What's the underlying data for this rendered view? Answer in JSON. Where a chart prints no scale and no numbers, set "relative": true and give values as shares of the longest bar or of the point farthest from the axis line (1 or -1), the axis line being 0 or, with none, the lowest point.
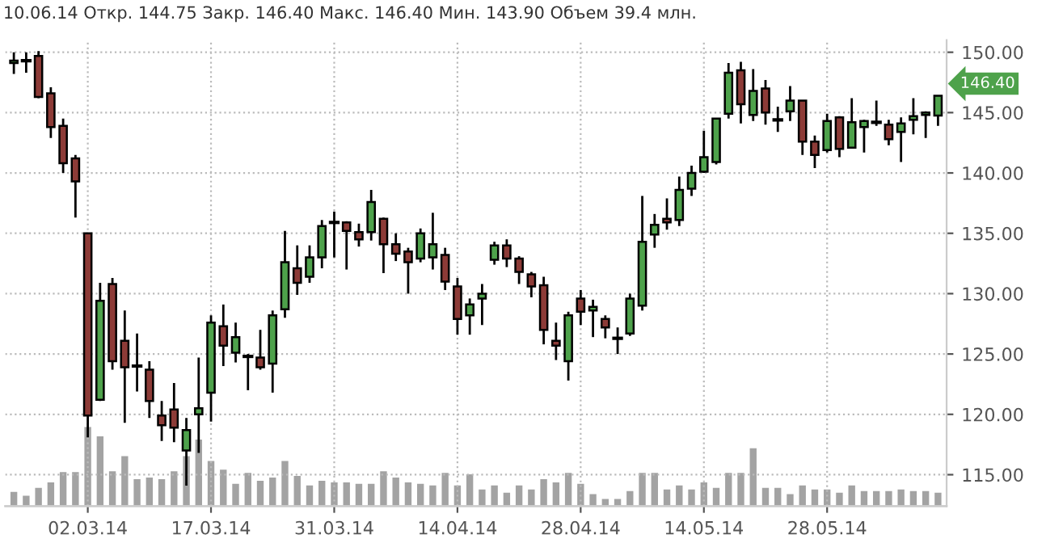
{
  "chart_data": [
    {
      "type": "candlestick",
      "title": "10.06.14 Откр. 144.75 Закр. 146.40 Макс. 146.40 Мин. 143.90 Объем 39.4 млн.",
      "categories": [
        null,
        null,
        null,
        null,
        null,
        null,
        "02.03.14",
        null,
        null,
        null,
        null,
        null,
        null,
        null,
        null,
        null,
        "17.03.14",
        null,
        null,
        null,
        null,
        null,
        null,
        null,
        null,
        null,
        "31.03.14",
        null,
        null,
        null,
        null,
        null,
        null,
        null,
        null,
        null,
        "14.04.14",
        null,
        null,
        null,
        null,
        null,
        null,
        null,
        null,
        null,
        "28.04.14",
        null,
        null,
        null,
        null,
        null,
        null,
        null,
        null,
        null,
        "14.05.14",
        null,
        null,
        null,
        null,
        null,
        null,
        null,
        null,
        null,
        "28.05.14",
        null,
        null,
        null,
        null,
        null,
        null,
        null,
        null,
        null
      ],
      "series": [
        {
          "type": "candlestick",
          "colors": [
            "#4ea24b",
            "#000000",
            "#8d3b37",
            "#8d3b37",
            "#8d3b37",
            "#8d3b37",
            "#8d3b37",
            "#4ea24b",
            "#8d3b37",
            "#8d3b37",
            "#000000",
            "#8d3b37",
            "#8d3b37",
            "#8d3b37",
            "#4ea24b",
            "#4ea24b",
            "#4ea24b",
            "#8d3b37",
            "#4ea24b",
            "#000000",
            "#8d3b37",
            "#4ea24b",
            "#4ea24b",
            "#8d3b37",
            "#4ea24b",
            "#4ea24b",
            "#000000",
            "#8d3b37",
            "#8d3b37",
            "#4ea24b",
            "#8d3b37",
            "#8d3b37",
            "#8d3b37",
            "#4ea24b",
            "#4ea24b",
            "#8d3b37",
            "#8d3b37",
            "#4ea24b",
            "#4ea24b",
            "#4ea24b",
            "#8d3b37",
            "#8d3b37",
            "#8d3b37",
            "#8d3b37",
            "#8d3b37",
            "#4ea24b",
            "#8d3b37",
            "#4ea24b",
            "#8d3b37",
            "#000000",
            "#4ea24b",
            "#4ea24b",
            "#4ea24b",
            "#8d3b37",
            "#4ea24b",
            "#4ea24b",
            "#4ea24b",
            "#4ea24b",
            "#4ea24b",
            "#8d3b37",
            "#4ea24b",
            "#8d3b37",
            "#000000",
            "#4ea24b",
            "#8d3b37",
            "#8d3b37",
            "#4ea24b",
            "#8d3b37",
            "#4ea24b",
            "#4ea24b",
            "#000000",
            "#8d3b37",
            "#4ea24b",
            "#4ea24b",
            "#4ea24b",
            "#4ea24b"
          ],
          "ohlc": [
            [
              149.1,
              150,
              148.2,
              149.3
            ],
            [
              149.3,
              150,
              148.3,
              149.3
            ],
            [
              149.7,
              150.1,
              146.2,
              146.3
            ],
            [
              146.6,
              147.1,
              142.9,
              143.8
            ],
            [
              143.9,
              144.5,
              140.0,
              140.8
            ],
            [
              141.2,
              141.5,
              136.3,
              139.3
            ],
            [
              135.0,
              135.0,
              118.1,
              119.9
            ],
            [
              121.2,
              130.9,
              121.1,
              129.4
            ],
            [
              130.8,
              131.3,
              123.7,
              124.4
            ],
            [
              126.1,
              128.6,
              119.3,
              123.9
            ],
            [
              124.0,
              126.7,
              121.9,
              124.0
            ],
            [
              123.7,
              124.4,
              119.7,
              121.1
            ],
            [
              119.9,
              121.1,
              117.8,
              119.1
            ],
            [
              120.4,
              122.6,
              117.7,
              118.9
            ],
            [
              117.0,
              119.7,
              114.1,
              118.7
            ],
            [
              120.0,
              124.7,
              116.8,
              120.5
            ],
            [
              121.8,
              128.2,
              119.4,
              127.6
            ],
            [
              127.3,
              129.1,
              124.0,
              125.7
            ],
            [
              125.1,
              127.6,
              124.3,
              126.4
            ],
            [
              124.8,
              125.0,
              122.0,
              124.8
            ],
            [
              124.7,
              127.0,
              123.7,
              123.9
            ],
            [
              124.2,
              128.6,
              121.8,
              128.2
            ],
            [
              128.7,
              135.2,
              128.0,
              132.6
            ],
            [
              132.1,
              134.0,
              129.9,
              130.9
            ],
            [
              131.4,
              134.0,
              130.9,
              133.0
            ],
            [
              133.0,
              136.1,
              132.1,
              135.6
            ],
            [
              135.9,
              136.8,
              133.0,
              135.9
            ],
            [
              135.9,
              136.0,
              132.0,
              135.2
            ],
            [
              135.1,
              135.8,
              133.9,
              134.5
            ],
            [
              135.1,
              138.6,
              134.4,
              137.6
            ],
            [
              136.2,
              136.3,
              131.7,
              134.1
            ],
            [
              134.1,
              135.0,
              132.7,
              133.3
            ],
            [
              133.5,
              133.8,
              130.0,
              132.6
            ],
            [
              132.9,
              135.4,
              132.6,
              135.0
            ],
            [
              133.0,
              136.7,
              132.0,
              134.1
            ],
            [
              133.2,
              133.8,
              130.3,
              131.0
            ],
            [
              130.6,
              131.3,
              126.6,
              127.9
            ],
            [
              128.2,
              129.6,
              126.6,
              129.1
            ],
            [
              129.6,
              130.8,
              127.4,
              130.0
            ],
            [
              132.8,
              134.3,
              132.4,
              134.0
            ],
            [
              134.0,
              134.5,
              132.2,
              132.9
            ],
            [
              132.9,
              133.1,
              130.8,
              131.8
            ],
            [
              131.6,
              131.8,
              129.7,
              130.6
            ],
            [
              130.7,
              131.4,
              125.8,
              127.0
            ],
            [
              126.1,
              127.6,
              124.5,
              125.7
            ],
            [
              124.4,
              128.5,
              122.8,
              128.2
            ],
            [
              129.6,
              130.3,
              127.4,
              128.5
            ],
            [
              128.6,
              129.5,
              126.4,
              128.9
            ],
            [
              127.9,
              128.2,
              126.3,
              127.2
            ],
            [
              126.3,
              127.2,
              125.0,
              126.3
            ],
            [
              126.7,
              130.0,
              126.5,
              129.6
            ],
            [
              129.0,
              138.1,
              128.6,
              134.3
            ],
            [
              134.9,
              136.6,
              133.8,
              135.7
            ],
            [
              136.2,
              137.9,
              135.3,
              135.9
            ],
            [
              136.1,
              139.7,
              135.6,
              138.6
            ],
            [
              138.7,
              140.6,
              138.1,
              140.0
            ],
            [
              140.1,
              143.5,
              140.0,
              141.3
            ],
            [
              140.9,
              144.5,
              140.7,
              144.5
            ],
            [
              144.9,
              149.1,
              144.5,
              148.3
            ],
            [
              148.5,
              149.2,
              144.1,
              145.7
            ],
            [
              144.8,
              148.6,
              144.3,
              146.8
            ],
            [
              147.0,
              147.7,
              144.0,
              145.0
            ],
            [
              144.4,
              145.5,
              143.4,
              144.4
            ],
            [
              145.1,
              147.2,
              144.3,
              146.0
            ],
            [
              146.0,
              146.0,
              141.5,
              142.6
            ],
            [
              142.6,
              143.1,
              140.4,
              141.5
            ],
            [
              141.9,
              144.9,
              141.7,
              144.3
            ],
            [
              144.6,
              144.7,
              141.3,
              142.0
            ],
            [
              142.1,
              146.2,
              142.1,
              144.2
            ],
            [
              143.8,
              144.4,
              141.7,
              144.3
            ],
            [
              144.2,
              146.0,
              143.9,
              144.2
            ],
            [
              144.0,
              144.4,
              142.3,
              142.8
            ],
            [
              143.4,
              144.6,
              140.9,
              144.1
            ],
            [
              144.4,
              146.2,
              143.2,
              144.7
            ],
            [
              144.8,
              145.1,
              142.9,
              145.0
            ],
            [
              144.75,
              146.4,
              143.9,
              146.4
            ]
          ]
        }
      ],
      "ylim": [
        112.4,
        151
      ],
      "yticks": [
        {
          "value": 115,
          "label": "115.00"
        },
        {
          "value": 120,
          "label": "120.00"
        },
        {
          "value": 125,
          "label": "125.00"
        },
        {
          "value": 130,
          "label": "130.00"
        },
        {
          "value": 135,
          "label": "135.00"
        },
        {
          "value": 140,
          "label": "140.00"
        },
        {
          "value": 145,
          "label": "145.00"
        },
        {
          "value": 150,
          "label": "150.00"
        }
      ],
      "annotations": [
        "146.40"
      ],
      "tick_labels": "y",
      "grid": true
    },
    {
      "type": "bar",
      "relative": true,
      "color": "#a3a3a3",
      "categories": [
        null,
        null,
        null,
        null,
        null,
        null,
        "02.03.14",
        null,
        null,
        null,
        null,
        null,
        null,
        null,
        null,
        null,
        "17.03.14",
        null,
        null,
        null,
        null,
        null,
        null,
        null,
        null,
        null,
        "31.03.14",
        null,
        null,
        null,
        null,
        null,
        null,
        null,
        null,
        null,
        "14.04.14",
        null,
        null,
        null,
        null,
        null,
        null,
        null,
        null,
        null,
        "28.04.14",
        null,
        null,
        null,
        null,
        null,
        null,
        null,
        null,
        null,
        "14.05.14",
        null,
        null,
        null,
        null,
        null,
        null,
        null,
        null,
        null,
        "28.05.14",
        null,
        null,
        null,
        null,
        null,
        null,
        null,
        null,
        null
      ],
      "values": [
        0.18,
        0.13,
        0.23,
        0.3,
        0.43,
        0.43,
        1,
        0.88,
        0.44,
        0.63,
        0.34,
        0.36,
        0.34,
        0.44,
        0.63,
        0.84,
        0.57,
        0.46,
        0.28,
        0.42,
        0.32,
        0.36,
        0.57,
        0.38,
        0.26,
        0.32,
        0.3,
        0.3,
        0.28,
        0.28,
        0.44,
        0.36,
        0.3,
        0.28,
        0.26,
        0.42,
        0.26,
        0.4,
        0.21,
        0.26,
        0.17,
        0.26,
        0.21,
        0.34,
        0.3,
        0.42,
        0.28,
        0.15,
        0.09,
        0.09,
        0.19,
        0.42,
        0.42,
        0.21,
        0.26,
        0.21,
        0.3,
        0.23,
        0.42,
        0.42,
        0.73,
        0.23,
        0.23,
        0.15,
        0.26,
        0.21,
        0.21,
        0.17,
        0.26,
        0.19,
        0.19,
        0.19,
        0.21,
        0.19,
        0.19,
        0.17
      ],
      "tick_labels": "x"
    }
  ]
}
